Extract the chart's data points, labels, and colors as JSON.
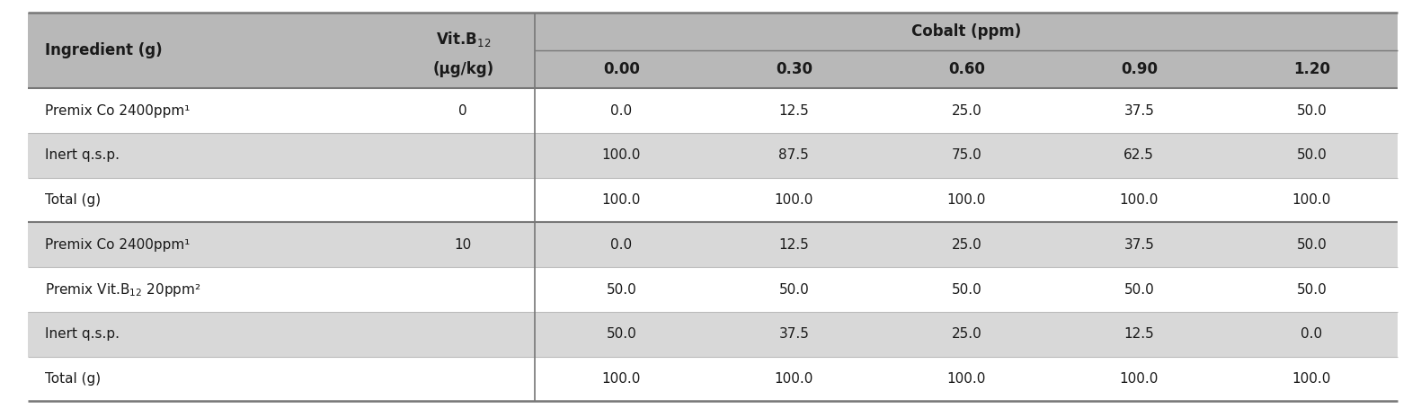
{
  "figsize": [
    15.71,
    4.65
  ],
  "dpi": 100,
  "rows": [
    {
      "ingredient": "Premix Co 2400ppm¹",
      "vitb12": "0",
      "vals": [
        "0.0",
        "12.5",
        "25.0",
        "37.5",
        "50.0"
      ],
      "bold": false,
      "bg_type": "white"
    },
    {
      "ingredient": "Inert q.s.p.",
      "vitb12": "",
      "vals": [
        "100.0",
        "87.5",
        "75.0",
        "62.5",
        "50.0"
      ],
      "bold": false,
      "bg_type": "gray"
    },
    {
      "ingredient": "Total (g)",
      "vitb12": "",
      "vals": [
        "100.0",
        "100.0",
        "100.0",
        "100.0",
        "100.0"
      ],
      "bold": false,
      "bg_type": "white_sep"
    },
    {
      "ingredient": "Premix Co 2400ppm¹",
      "vitb12": "10",
      "vals": [
        "0.0",
        "12.5",
        "25.0",
        "37.5",
        "50.0"
      ],
      "bold": false,
      "bg_type": "gray"
    },
    {
      "ingredient": "Premix Vit.B$_{12}$ 20ppm²",
      "vitb12": "",
      "vals": [
        "50.0",
        "50.0",
        "50.0",
        "50.0",
        "50.0"
      ],
      "bold": false,
      "bg_type": "white"
    },
    {
      "ingredient": "Inert q.s.p.",
      "vitb12": "",
      "vals": [
        "50.0",
        "37.5",
        "25.0",
        "12.5",
        "0.0"
      ],
      "bold": false,
      "bg_type": "gray"
    },
    {
      "ingredient": "Total (g)",
      "vitb12": "",
      "vals": [
        "100.0",
        "100.0",
        "100.0",
        "100.0",
        "100.0"
      ],
      "bold": false,
      "bg_type": "white"
    }
  ],
  "header_bg": "#b8b8b8",
  "subheader_bg": "#c8c8c8",
  "white_bg": "#ffffff",
  "gray_bg": "#d8d8d8",
  "cobalt_labels": [
    "0.00",
    "0.30",
    "0.60",
    "0.90",
    "1.20"
  ],
  "font_size": 11.0,
  "header_font_size": 12.0,
  "text_color": "#1a1a1a"
}
